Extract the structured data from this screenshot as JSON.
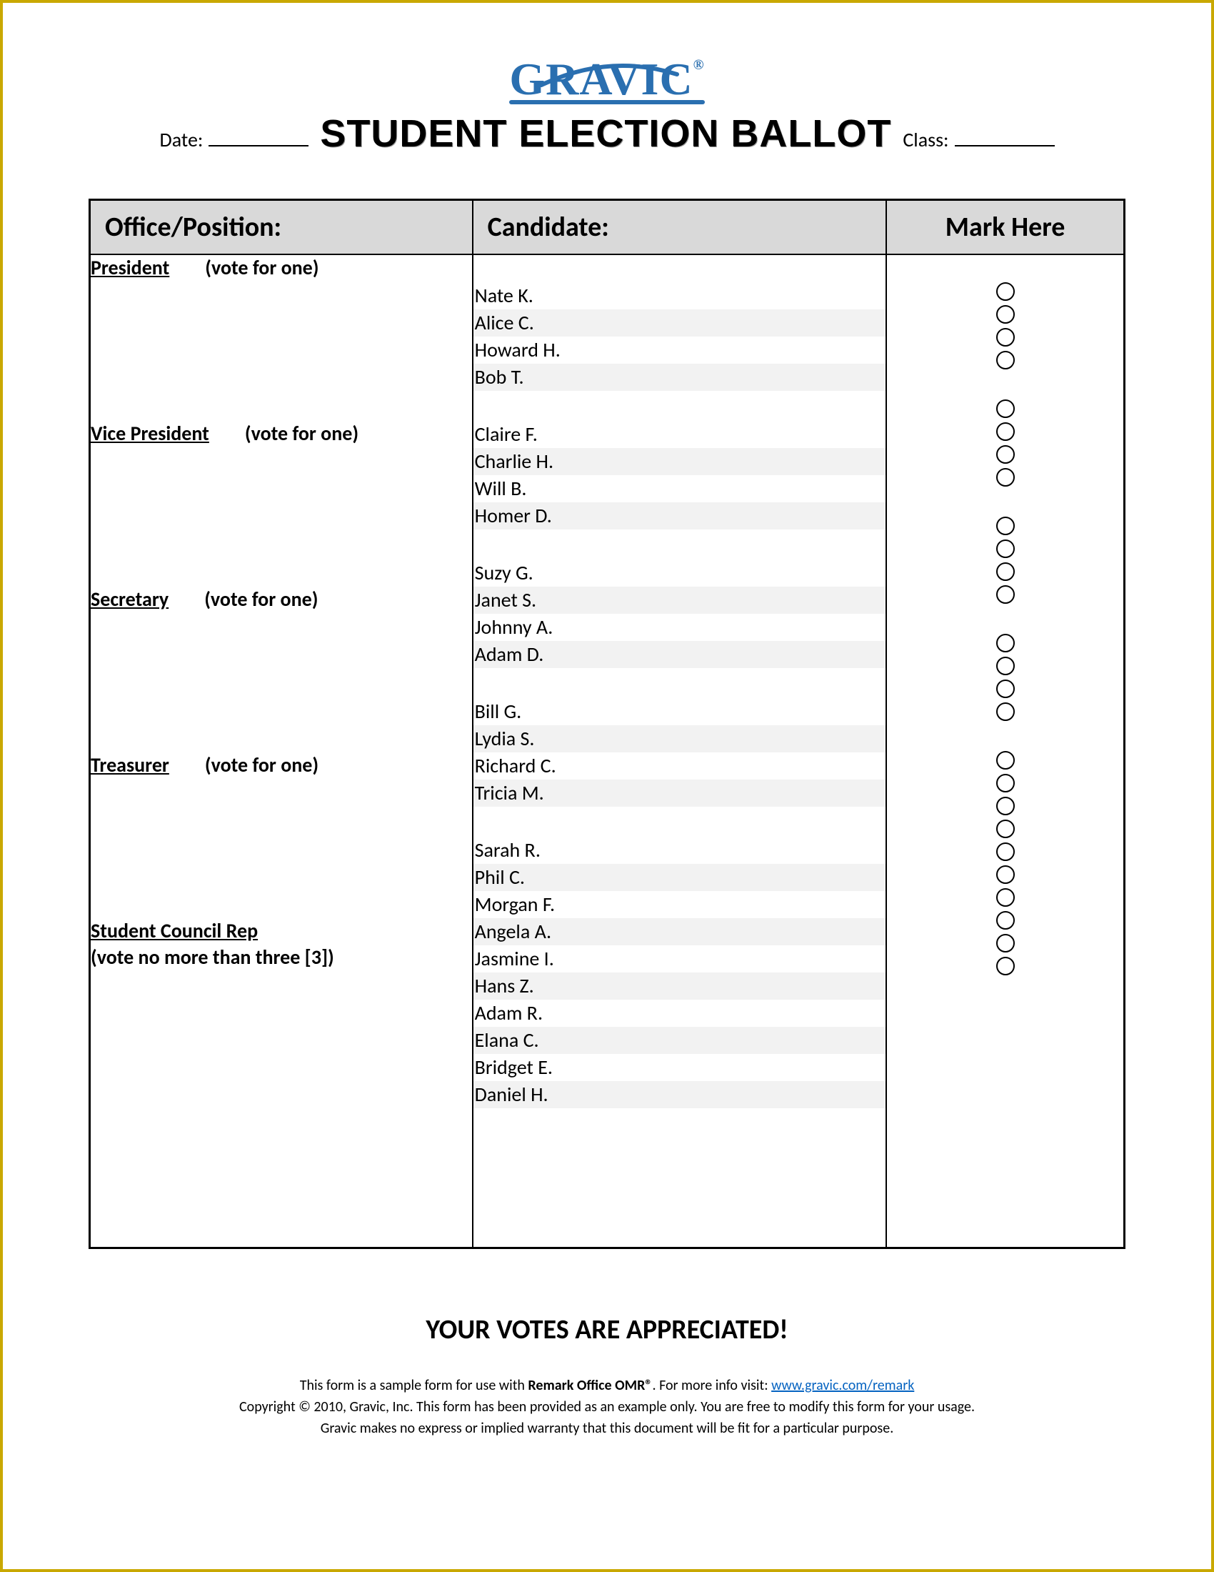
{
  "logo": {
    "text": "GRAVIC",
    "reg": "®"
  },
  "header": {
    "date_label": "Date:",
    "title": "Student Election Ballot",
    "class_label": "Class:"
  },
  "table": {
    "col_office": "Office/Position:",
    "col_candidate": "Candidate:",
    "col_mark": "Mark Here"
  },
  "offices": [
    {
      "name": "President",
      "instr": "(vote for one)",
      "two_line": false,
      "candidates": [
        "Nate K.",
        "Alice C.",
        "Howard H.",
        "Bob T."
      ]
    },
    {
      "name": "Vice President",
      "instr": "(vote for one)",
      "two_line": false,
      "candidates": [
        "Claire F.",
        "Charlie H.",
        "Will B.",
        "Homer D."
      ]
    },
    {
      "name": "Secretary",
      "instr": "(vote for one)",
      "two_line": false,
      "candidates": [
        "Suzy G.",
        "Janet S.",
        "Johnny A.",
        "Adam D."
      ]
    },
    {
      "name": "Treasurer",
      "instr": "(vote for one)",
      "two_line": false,
      "candidates": [
        "Bill G.",
        "Lydia S.",
        "Richard C.",
        "Tricia M."
      ]
    },
    {
      "name": "Student Council Rep",
      "instr": "(vote no more than three [3])",
      "two_line": true,
      "candidates": [
        "Sarah R.",
        "Phil C.",
        "Morgan F.",
        "Angela A.",
        "Jasmine I.",
        "Hans Z.",
        "Adam R.",
        "Elana C.",
        "Bridget E.",
        "Daniel H."
      ]
    }
  ],
  "footer": {
    "thanks": "YOUR VOTES ARE APPRECIATED!",
    "line1_a": "This form is a sample form for use with ",
    "line1_b": "Remark Office OMR®",
    "line1_c": ". For more info visit: ",
    "link": "www.gravic.com/remark",
    "line2": "Copyright © 2010, Gravic, Inc. This form has been provided as an example only. You are free to modify this form for your usage.",
    "line3": "Gravic makes no express or implied warranty that this document will be fit for a particular purpose."
  },
  "colors": {
    "border": "#c9a800",
    "logo": "#2a6fb0",
    "header_bg": "#d9d9d9",
    "alt_row": "#f2f2f2",
    "link": "#0563c1"
  }
}
